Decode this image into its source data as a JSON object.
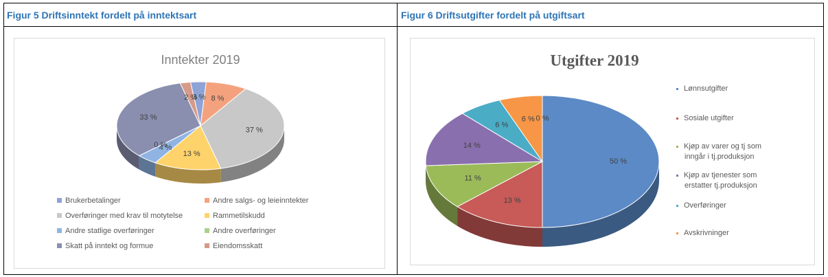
{
  "captions": [
    "Figur 5 Driftsinntekt fordelt på inntektsart",
    "Figur 6 Driftsutgifter fordelt på utgiftsart"
  ],
  "chart_data": [
    {
      "type": "pie",
      "title": "Inntekter 2019",
      "categories": [
        "Brukerbetalinger",
        "Andre salgs- og leieinntekter",
        "Overføringer med krav til motytelse",
        "Rammetilskudd",
        "Andre statlige overføringer",
        "Andre overføringer",
        "Skatt på inntekt og formue",
        "Eiendomsskatt"
      ],
      "values": [
        3,
        8,
        37,
        13,
        4,
        0,
        33,
        2
      ],
      "value_labels": [
        "3 %",
        "8 %",
        "37 %",
        "13 %",
        "4 %",
        "0 %",
        "33 %",
        "2 %"
      ],
      "colors": [
        "#8ea3d6",
        "#f4a27e",
        "#c8c8c8",
        "#ffd36b",
        "#8fb4e3",
        "#a9d18e",
        "#8a8fb0",
        "#d69a8a"
      ],
      "legend": "bottom"
    },
    {
      "type": "pie",
      "title": "Utgifter 2019",
      "categories": [
        "Lønnsutgifter",
        "Sosiale utgifter",
        "Kjøp av varer og tj som inngår i tj.produksjon",
        "Kjøp av tjenester som erstatter tj.produksjon",
        "Overføringer",
        "Avskrivninger",
        null
      ],
      "values": [
        50,
        13,
        11,
        14,
        6,
        6,
        0
      ],
      "value_labels": [
        "50 %",
        "13 %",
        "11 %",
        "14 %",
        "6 %",
        "6 %",
        "0 %"
      ],
      "colors": [
        "#5b8ac6",
        "#c85a57",
        "#9bbb59",
        "#8a6fae",
        "#4bacc6",
        "#f79646",
        "#2c4d75"
      ],
      "legend": "right"
    }
  ]
}
